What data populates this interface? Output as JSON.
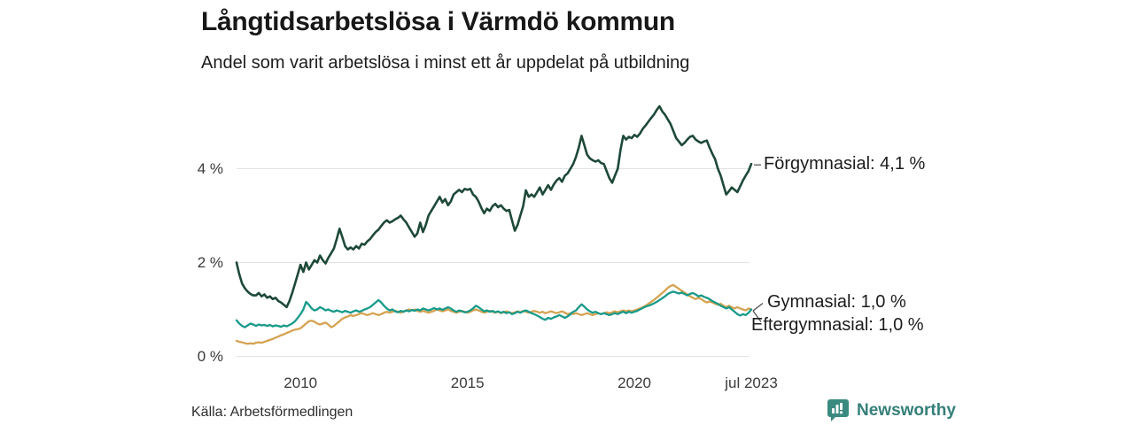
{
  "header": {
    "title": "Långtidsarbetslösa i Värmdö kommun",
    "subtitle": "Andel som varit arbetslösa i minst ett år uppdelat på utbildning"
  },
  "footer": {
    "source": "Källa: Arbetsförmedlingen",
    "brand": "Newsworthy",
    "brand_color": "#357f78"
  },
  "chart_data": {
    "type": "line",
    "unit": "%",
    "x_start": "feb 2008",
    "x_end": "jul 2023",
    "x_resolution": "monthly",
    "grid": true,
    "ylim": [
      0,
      5.7
    ],
    "colors": {
      "grid": "#e3e3e3",
      "connector": "#4a4a4a"
    },
    "y_axis": {
      "ticks": [
        {
          "label": "0 %",
          "value": 0
        },
        {
          "label": "2 %",
          "value": 2
        },
        {
          "label": "4 %",
          "value": 4
        }
      ]
    },
    "x_axis": {
      "ticks": [
        {
          "label": "2010",
          "month_index": 23
        },
        {
          "label": "2015",
          "month_index": 83
        },
        {
          "label": "2020",
          "month_index": 143
        },
        {
          "label": "jul 2023",
          "month_index": 185
        }
      ]
    },
    "series": [
      {
        "name": "Förgymnasial",
        "end_label": "Förgymnasial: 4,1 %",
        "end_value": 4.1,
        "color": "#1e4938",
        "width": 2.6,
        "values": [
          2.0,
          1.75,
          1.55,
          1.45,
          1.38,
          1.33,
          1.3,
          1.3,
          1.35,
          1.28,
          1.32,
          1.25,
          1.28,
          1.22,
          1.25,
          1.18,
          1.15,
          1.1,
          1.05,
          1.18,
          1.35,
          1.55,
          1.75,
          1.95,
          1.8,
          2.0,
          1.85,
          1.95,
          2.05,
          2.0,
          2.15,
          2.05,
          1.98,
          2.1,
          2.2,
          2.3,
          2.5,
          2.72,
          2.55,
          2.35,
          2.28,
          2.32,
          2.28,
          2.35,
          2.3,
          2.4,
          2.38,
          2.45,
          2.5,
          2.58,
          2.65,
          2.7,
          2.78,
          2.85,
          2.9,
          2.85,
          2.88,
          2.92,
          2.95,
          3.0,
          2.92,
          2.85,
          2.75,
          2.65,
          2.55,
          2.62,
          2.85,
          2.65,
          2.8,
          3.0,
          3.1,
          3.2,
          3.3,
          3.4,
          3.28,
          3.35,
          3.22,
          3.3,
          3.45,
          3.5,
          3.55,
          3.5,
          3.57,
          3.55,
          3.57,
          3.45,
          3.4,
          3.3,
          3.16,
          3.05,
          3.15,
          3.1,
          3.2,
          3.25,
          3.18,
          3.22,
          3.15,
          3.1,
          3.12,
          2.9,
          2.68,
          2.8,
          3.0,
          3.2,
          3.54,
          3.4,
          3.45,
          3.4,
          3.5,
          3.6,
          3.45,
          3.55,
          3.65,
          3.55,
          3.66,
          3.75,
          3.8,
          3.72,
          3.85,
          3.9,
          4.0,
          4.1,
          4.25,
          4.45,
          4.7,
          4.5,
          4.3,
          4.22,
          4.18,
          4.15,
          4.18,
          4.12,
          4.1,
          3.95,
          3.8,
          3.7,
          3.85,
          4.0,
          4.4,
          4.7,
          4.62,
          4.68,
          4.65,
          4.72,
          4.68,
          4.75,
          4.85,
          4.92,
          5.0,
          5.08,
          5.15,
          5.25,
          5.33,
          5.22,
          5.15,
          5.05,
          4.95,
          4.8,
          4.65,
          4.58,
          4.5,
          4.55,
          4.62,
          4.68,
          4.7,
          4.62,
          4.58,
          4.55,
          4.58,
          4.6,
          4.45,
          4.32,
          4.2,
          4.0,
          3.85,
          3.65,
          3.45,
          3.52,
          3.6,
          3.55,
          3.5,
          3.62,
          3.75,
          3.85,
          3.95,
          4.1
        ]
      },
      {
        "name": "Gymnasial",
        "end_label": "Gymnasial: 1,0 %",
        "end_value": 1.0,
        "color": "#189a8a",
        "width": 2.3,
        "values": [
          0.77,
          0.7,
          0.65,
          0.62,
          0.66,
          0.7,
          0.68,
          0.65,
          0.68,
          0.66,
          0.67,
          0.65,
          0.67,
          0.64,
          0.66,
          0.65,
          0.63,
          0.66,
          0.64,
          0.67,
          0.7,
          0.75,
          0.82,
          0.9,
          1.0,
          1.16,
          1.1,
          1.02,
          0.98,
          1.0,
          1.05,
          1.02,
          0.98,
          1.0,
          0.97,
          0.95,
          0.98,
          0.96,
          0.94,
          0.97,
          0.95,
          0.93,
          0.96,
          0.98,
          0.95,
          0.97,
          1.0,
          1.02,
          1.05,
          1.1,
          1.15,
          1.2,
          1.15,
          1.08,
          1.02,
          0.98,
          1.0,
          0.96,
          0.94,
          0.97,
          0.95,
          0.98,
          0.96,
          0.99,
          0.97,
          1.0,
          0.98,
          1.02,
          1.0,
          0.98,
          1.0,
          1.03,
          1.0,
          1.02,
          0.99,
          1.02,
          1.05,
          1.02,
          0.98,
          0.95,
          0.98,
          0.96,
          0.94,
          0.95,
          0.98,
          1.02,
          1.08,
          1.05,
          1.0,
          0.96,
          0.98,
          0.95,
          0.97,
          0.94,
          0.96,
          0.93,
          0.95,
          0.92,
          0.94,
          0.9,
          0.92,
          0.95,
          0.93,
          0.96,
          0.98,
          0.95,
          0.92,
          0.9,
          0.87,
          0.84,
          0.8,
          0.78,
          0.82,
          0.8,
          0.83,
          0.85,
          0.88,
          0.85,
          0.82,
          0.85,
          0.9,
          0.95,
          0.98,
          1.05,
          1.11,
          1.06,
          1.0,
          0.96,
          0.93,
          0.95,
          0.92,
          0.9,
          0.92,
          0.9,
          0.88,
          0.9,
          0.92,
          0.9,
          0.93,
          0.95,
          0.92,
          0.95,
          0.93,
          0.95,
          0.97,
          1.0,
          1.03,
          1.06,
          1.08,
          1.1,
          1.13,
          1.16,
          1.2,
          1.24,
          1.28,
          1.33,
          1.36,
          1.38,
          1.36,
          1.34,
          1.36,
          1.33,
          1.3,
          1.33,
          1.35,
          1.32,
          1.28,
          1.3,
          1.27,
          1.25,
          1.22,
          1.18,
          1.15,
          1.12,
          1.08,
          1.05,
          1.02,
          1.05,
          1.0,
          0.95,
          0.9,
          0.87,
          0.9,
          0.88,
          0.93,
          1.0
        ]
      },
      {
        "name": "Eftergymnasial",
        "end_label": "Eftergymnasial: 1,0 %",
        "end_value": 1.0,
        "color": "#d5a351",
        "width": 2.3,
        "values": [
          0.33,
          0.31,
          0.3,
          0.28,
          0.27,
          0.28,
          0.27,
          0.29,
          0.3,
          0.29,
          0.31,
          0.33,
          0.35,
          0.37,
          0.4,
          0.42,
          0.45,
          0.47,
          0.5,
          0.52,
          0.55,
          0.57,
          0.58,
          0.6,
          0.65,
          0.7,
          0.75,
          0.76,
          0.74,
          0.7,
          0.68,
          0.7,
          0.72,
          0.68,
          0.62,
          0.65,
          0.7,
          0.75,
          0.8,
          0.83,
          0.85,
          0.88,
          0.86,
          0.88,
          0.9,
          0.92,
          0.9,
          0.88,
          0.9,
          0.92,
          0.9,
          0.88,
          0.9,
          0.93,
          0.95,
          0.93,
          0.95,
          0.97,
          0.95,
          0.93,
          0.95,
          0.98,
          1.0,
          0.98,
          1.0,
          0.97,
          0.95,
          0.97,
          0.95,
          0.93,
          0.95,
          0.97,
          1.0,
          0.98,
          0.96,
          0.98,
          1.0,
          0.97,
          0.95,
          0.93,
          0.95,
          0.97,
          0.95,
          0.93,
          0.95,
          0.98,
          1.0,
          0.98,
          0.95,
          0.93,
          0.95,
          0.97,
          0.95,
          0.93,
          0.95,
          0.92,
          0.94,
          0.96,
          0.94,
          0.92,
          0.94,
          0.96,
          0.94,
          0.97,
          0.95,
          0.93,
          0.95,
          0.97,
          0.95,
          0.93,
          0.95,
          0.92,
          0.94,
          0.96,
          0.94,
          0.92,
          0.94,
          0.96,
          0.93,
          0.9,
          0.92,
          0.9,
          0.92,
          0.9,
          0.88,
          0.9,
          0.92,
          0.9,
          0.88,
          0.9,
          0.92,
          0.9,
          0.92,
          0.94,
          0.92,
          0.94,
          0.96,
          0.94,
          0.96,
          0.98,
          0.96,
          0.98,
          0.96,
          0.98,
          1.0,
          1.02,
          1.05,
          1.08,
          1.12,
          1.16,
          1.2,
          1.25,
          1.3,
          1.35,
          1.4,
          1.46,
          1.5,
          1.52,
          1.48,
          1.44,
          1.4,
          1.36,
          1.32,
          1.28,
          1.25,
          1.22,
          1.25,
          1.22,
          1.18,
          1.15,
          1.17,
          1.15,
          1.12,
          1.1,
          1.12,
          1.08,
          1.05,
          1.08,
          1.05,
          1.02,
          1.05,
          1.02,
          1.0,
          0.98,
          1.02,
          1.0
        ]
      }
    ]
  }
}
